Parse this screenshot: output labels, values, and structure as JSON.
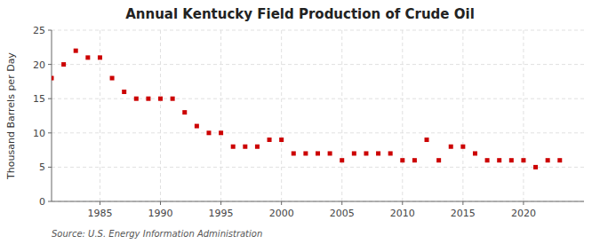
{
  "chart_data": {
    "type": "scatter",
    "title": "Annual Kentucky Field Production of Crude Oil",
    "ylabel": "Thousand Barrels per Day",
    "annotations": [
      "Source: U.S. Energy Information Administration"
    ],
    "x": [
      1981,
      1982,
      1983,
      1984,
      1985,
      1986,
      1987,
      1988,
      1989,
      1990,
      1991,
      1992,
      1993,
      1994,
      1995,
      1996,
      1997,
      1998,
      1999,
      2000,
      2001,
      2002,
      2003,
      2004,
      2005,
      2006,
      2007,
      2008,
      2009,
      2010,
      2011,
      2012,
      2013,
      2014,
      2015,
      2016,
      2017,
      2018,
      2019,
      2020,
      2021,
      2022,
      2023
    ],
    "values": [
      18,
      20,
      22,
      21,
      21,
      18,
      16,
      15,
      15,
      15,
      15,
      13,
      11,
      10,
      10,
      8,
      8,
      8,
      9,
      9,
      7,
      7,
      7,
      7,
      6,
      7,
      7,
      7,
      7,
      6,
      6,
      9,
      6,
      8,
      8,
      7,
      6,
      6,
      6,
      6,
      5,
      6,
      6
    ],
    "color": "#cc0000",
    "marker": "square",
    "xlim": [
      1981,
      2025
    ],
    "ylim": [
      0,
      25
    ],
    "xticks": [
      1985,
      1990,
      1995,
      2000,
      2005,
      2010,
      2015,
      2020
    ],
    "yticks": [
      0,
      5,
      10,
      15,
      20,
      25
    ],
    "grid": true
  }
}
